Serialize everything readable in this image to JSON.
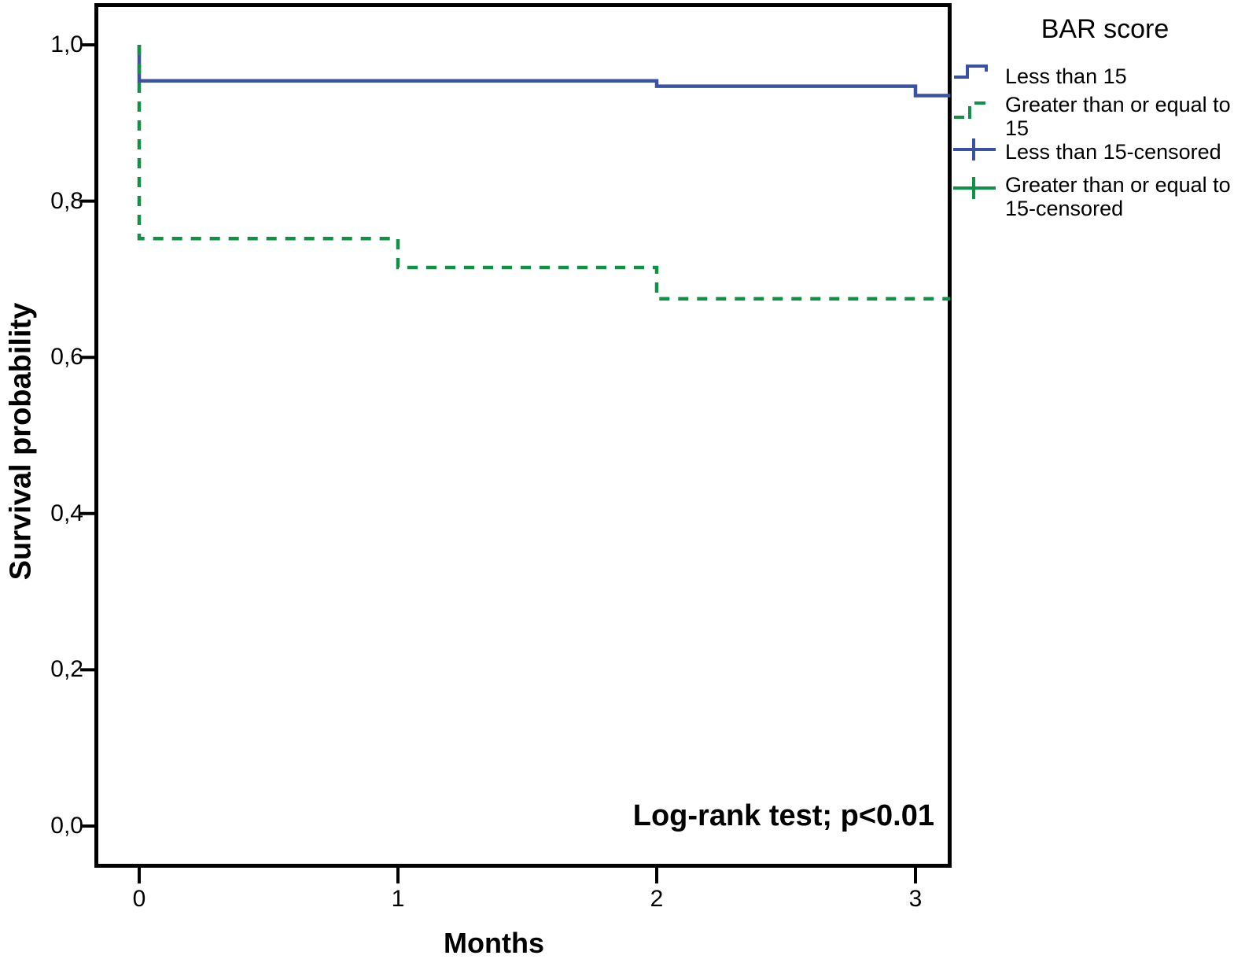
{
  "chart_data": {
    "type": "line",
    "subtype": "kaplan-meier-step",
    "title": "",
    "xlabel": "Months",
    "ylabel": "Survival probability",
    "annotation": "Log-rank test; p<0.01",
    "xlim": [
      -0.173,
      3.14
    ],
    "ylim": [
      -0.053,
      1.053
    ],
    "grid": false,
    "xticks": [
      {
        "value": 0,
        "label": "0"
      },
      {
        "value": 1,
        "label": "1"
      },
      {
        "value": 2,
        "label": "2"
      },
      {
        "value": 3,
        "label": "3"
      }
    ],
    "yticks": [
      {
        "value": 0.0,
        "label": "0,0"
      },
      {
        "value": 0.2,
        "label": "0,2"
      },
      {
        "value": 0.4,
        "label": "0,4"
      },
      {
        "value": 0.6,
        "label": "0,6"
      },
      {
        "value": 0.8,
        "label": "0,8"
      },
      {
        "value": 1.0,
        "label": "1,0"
      }
    ],
    "legend": {
      "title": "BAR score",
      "position": "top-right-outside",
      "entries": [
        {
          "name": "Less than 15",
          "lines": [
            "Less than 15",
            ""
          ],
          "color": "#3a52a4",
          "style": "solid-step"
        },
        {
          "name": "Greater than or equal to 15",
          "lines": [
            "Greater than or equal to",
            "15"
          ],
          "color": "#0f9243",
          "style": "dashed-step"
        },
        {
          "name": "Less than 15-censored",
          "lines": [
            "Less than 15-censored",
            ""
          ],
          "color": "#3a52a4",
          "style": "censored-plus"
        },
        {
          "name": "Greater than or equal to 15-censored",
          "lines": [
            "Greater than or equal to",
            "15-censored"
          ],
          "color": "#0f9243",
          "style": "censored-plus"
        }
      ]
    },
    "series": [
      {
        "name": "Less than 15",
        "color": "#3a52a4",
        "dash": "solid",
        "points": [
          [
            0,
            1.0
          ],
          [
            0,
            0.954
          ],
          [
            2,
            0.954
          ],
          [
            2,
            0.947
          ],
          [
            3,
            0.947
          ],
          [
            3,
            0.935
          ],
          [
            3.135,
            0.935
          ]
        ]
      },
      {
        "name": "Greater than or equal to 15",
        "color": "#0f9243",
        "dash": "dashed",
        "points": [
          [
            0,
            1.0
          ],
          [
            0,
            0.752
          ],
          [
            1,
            0.752
          ],
          [
            1,
            0.715
          ],
          [
            2,
            0.715
          ],
          [
            2,
            0.675
          ],
          [
            3.135,
            0.675
          ]
        ]
      }
    ],
    "colors": {
      "axis": "#000000",
      "background": "#ffffff",
      "group_less_than_15": "#3a52a4",
      "group_greater_equal_15": "#0f9243"
    }
  }
}
